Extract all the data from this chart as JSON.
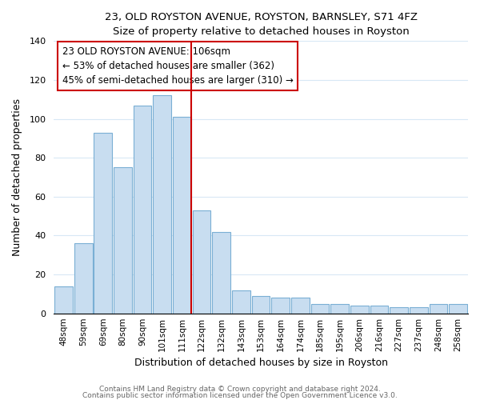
{
  "title": "23, OLD ROYSTON AVENUE, ROYSTON, BARNSLEY, S71 4FZ",
  "subtitle": "Size of property relative to detached houses in Royston",
  "xlabel": "Distribution of detached houses by size in Royston",
  "ylabel": "Number of detached properties",
  "bar_color": "#c8ddf0",
  "bar_edge_color": "#7aafd4",
  "categories": [
    "48sqm",
    "59sqm",
    "69sqm",
    "80sqm",
    "90sqm",
    "101sqm",
    "111sqm",
    "122sqm",
    "132sqm",
    "143sqm",
    "153sqm",
    "164sqm",
    "174sqm",
    "185sqm",
    "195sqm",
    "206sqm",
    "216sqm",
    "227sqm",
    "237sqm",
    "248sqm",
    "258sqm"
  ],
  "values": [
    14,
    36,
    93,
    75,
    107,
    112,
    101,
    53,
    42,
    12,
    9,
    8,
    8,
    5,
    5,
    4,
    4,
    3,
    3,
    5,
    5
  ],
  "ylim": [
    0,
    140
  ],
  "yticks": [
    0,
    20,
    40,
    60,
    80,
    100,
    120,
    140
  ],
  "annotation_line1": "23 OLD ROYSTON AVENUE: 106sqm",
  "annotation_line2": "← 53% of detached houses are smaller (362)",
  "annotation_line3": "45% of semi-detached houses are larger (310) →",
  "annotation_box_color": "#ffffff",
  "annotation_box_edge": "#cc0000",
  "vline_color": "#cc0000",
  "footer1": "Contains HM Land Registry data © Crown copyright and database right 2024.",
  "footer2": "Contains public sector information licensed under the Open Government Licence v3.0."
}
